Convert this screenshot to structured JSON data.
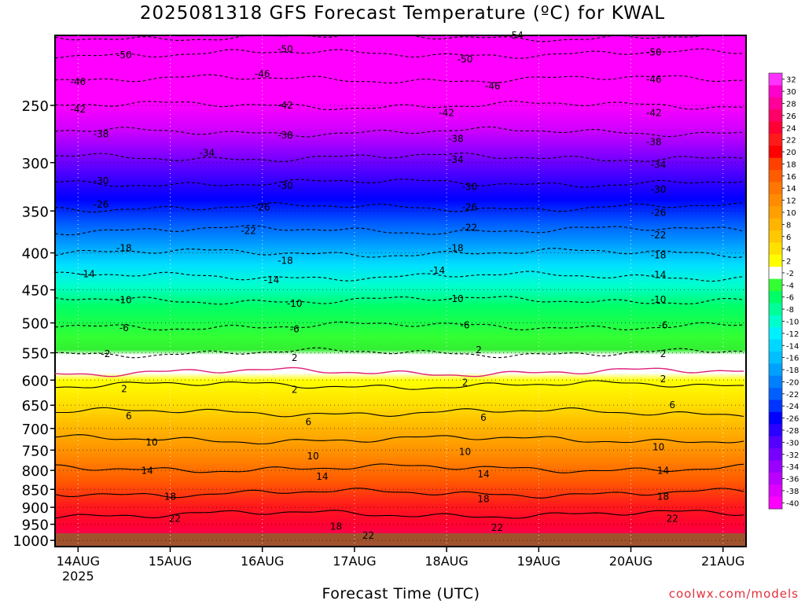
{
  "title": "2025081318 GFS Forecast Temperature (ºC) for KWAL",
  "credit": "coolwx.com/models",
  "chart_data": {
    "type": "heatmap",
    "title": "2025081318 GFS Forecast Temperature (ºC) for KWAL",
    "xlabel": "Forecast Time (UTC)",
    "ylabel": "",
    "x_ticks": [
      "14AUG",
      "15AUG",
      "16AUG",
      "17AUG",
      "18AUG",
      "19AUG",
      "20AUG",
      "21AUG"
    ],
    "x_tick_sublabel": "2025",
    "x_range_days": [
      -0.25,
      7.25
    ],
    "y_ticks": [
      250,
      300,
      350,
      400,
      450,
      500,
      550,
      600,
      650,
      700,
      750,
      800,
      850,
      900,
      950,
      1000
    ],
    "y_range_hpa": [
      200,
      1020
    ],
    "y_scale": "log",
    "grid": true,
    "colorbar_labels": [
      "32",
      "30",
      "28",
      "26",
      "24",
      "22",
      "20",
      "18",
      "16",
      "14",
      "12",
      "10",
      "8",
      "6",
      "4",
      "2",
      "-2",
      "-4",
      "-6",
      "-8",
      "-10",
      "-12",
      "-14",
      "-16",
      "-18",
      "-20",
      "-22",
      "-24",
      "-26",
      "-28",
      "-30",
      "-32",
      "-34",
      "-36",
      "-38",
      "-40"
    ],
    "colorbar_colors": [
      "#ff33ff",
      "#ff00cc",
      "#ff0099",
      "#ff0066",
      "#ff0033",
      "#ff1a1a",
      "#ff0000",
      "#ff4000",
      "#ff5c00",
      "#ff7700",
      "#ff8c00",
      "#ffa000",
      "#ffb400",
      "#ffc800",
      "#ffe100",
      "#ffff00",
      "#ffffff",
      "#33ff33",
      "#00ff66",
      "#00ff99",
      "#00ffcc",
      "#00f0ff",
      "#00d8ff",
      "#00bfff",
      "#00a0ff",
      "#0080ff",
      "#0060ff",
      "#0033ff",
      "#0000ff",
      "#2a00ff",
      "#5500ff",
      "#7700ff",
      "#9900ff",
      "#bb00ff",
      "#dd00ff",
      "#ff00ff"
    ],
    "isotherm_levels": [
      {
        "value": -54,
        "p": 201
      },
      {
        "value": -50,
        "p": 212
      },
      {
        "value": -46,
        "p": 230
      },
      {
        "value": -42,
        "p": 250
      },
      {
        "value": -38,
        "p": 272
      },
      {
        "value": -34,
        "p": 295
      },
      {
        "value": -30,
        "p": 320
      },
      {
        "value": -26,
        "p": 346
      },
      {
        "value": -22,
        "p": 372
      },
      {
        "value": -18,
        "p": 400
      },
      {
        "value": -14,
        "p": 431
      },
      {
        "value": -10,
        "p": 465
      },
      {
        "value": -6,
        "p": 505
      },
      {
        "value": -2,
        "p": 550
      },
      {
        "value": 0,
        "p": 585
      },
      {
        "value": 2,
        "p": 610
      },
      {
        "value": 6,
        "p": 665
      },
      {
        "value": 10,
        "p": 725
      },
      {
        "value": 14,
        "p": 795
      },
      {
        "value": 18,
        "p": 860
      },
      {
        "value": 22,
        "p": 920
      }
    ],
    "contour_labels": [
      {
        "text": "-54",
        "day": 4.75,
        "p": 200
      },
      {
        "text": "-50",
        "day": 0.5,
        "p": 213
      },
      {
        "text": "-50",
        "day": 2.25,
        "p": 209
      },
      {
        "text": "-50",
        "day": 4.2,
        "p": 216
      },
      {
        "text": "-50",
        "day": 6.25,
        "p": 211
      },
      {
        "text": "-46",
        "day": 0.0,
        "p": 232
      },
      {
        "text": "-46",
        "day": 2.0,
        "p": 226
      },
      {
        "text": "-46",
        "day": 4.5,
        "p": 235
      },
      {
        "text": "-46",
        "day": 6.25,
        "p": 230
      },
      {
        "text": "-42",
        "day": 0.0,
        "p": 253
      },
      {
        "text": "-42",
        "day": 2.25,
        "p": 250
      },
      {
        "text": "-42",
        "day": 4.0,
        "p": 256
      },
      {
        "text": "-42",
        "day": 6.25,
        "p": 256
      },
      {
        "text": "-38",
        "day": 0.25,
        "p": 274
      },
      {
        "text": "-38",
        "day": 2.25,
        "p": 275
      },
      {
        "text": "-38",
        "day": 4.1,
        "p": 278
      },
      {
        "text": "-38",
        "day": 6.25,
        "p": 281
      },
      {
        "text": "-34",
        "day": 1.4,
        "p": 291
      },
      {
        "text": "-34",
        "day": 4.1,
        "p": 297
      },
      {
        "text": "-34",
        "day": 6.3,
        "p": 302
      },
      {
        "text": "-30",
        "day": 0.25,
        "p": 318
      },
      {
        "text": "-30",
        "day": 2.25,
        "p": 323
      },
      {
        "text": "-30",
        "day": 4.25,
        "p": 324
      },
      {
        "text": "-30",
        "day": 6.3,
        "p": 327
      },
      {
        "text": "-26",
        "day": 0.25,
        "p": 343
      },
      {
        "text": "-26",
        "day": 2.0,
        "p": 346
      },
      {
        "text": "-26",
        "day": 4.25,
        "p": 346
      },
      {
        "text": "-26",
        "day": 6.3,
        "p": 352
      },
      {
        "text": "-22",
        "day": 1.85,
        "p": 373
      },
      {
        "text": "-22",
        "day": 4.25,
        "p": 369
      },
      {
        "text": "-22",
        "day": 6.3,
        "p": 378
      },
      {
        "text": "-18",
        "day": 0.5,
        "p": 394
      },
      {
        "text": "-18",
        "day": 2.25,
        "p": 410
      },
      {
        "text": "-18",
        "day": 4.1,
        "p": 394
      },
      {
        "text": "-18",
        "day": 6.3,
        "p": 403
      },
      {
        "text": "-14",
        "day": 0.1,
        "p": 428
      },
      {
        "text": "-14",
        "day": 2.1,
        "p": 436
      },
      {
        "text": "-14",
        "day": 3.9,
        "p": 423
      },
      {
        "text": "-14",
        "day": 6.3,
        "p": 429
      },
      {
        "text": "-10",
        "day": 0.5,
        "p": 465
      },
      {
        "text": "-10",
        "day": 2.35,
        "p": 470
      },
      {
        "text": "-10",
        "day": 4.1,
        "p": 463
      },
      {
        "text": "-10",
        "day": 6.3,
        "p": 464
      },
      {
        "text": "-6",
        "day": 0.5,
        "p": 508
      },
      {
        "text": "-6",
        "day": 2.35,
        "p": 510
      },
      {
        "text": "-6",
        "day": 4.2,
        "p": 504
      },
      {
        "text": "-6",
        "day": 6.35,
        "p": 504
      },
      {
        "text": "-2",
        "day": 0.3,
        "p": 552
      },
      {
        "text": "2",
        "day": 2.35,
        "p": 559
      },
      {
        "text": "2",
        "day": 4.35,
        "p": 545
      },
      {
        "text": "2",
        "day": 6.35,
        "p": 552
      },
      {
        "text": "2",
        "day": 0.5,
        "p": 617
      },
      {
        "text": "2",
        "day": 2.35,
        "p": 619
      },
      {
        "text": "2",
        "day": 4.2,
        "p": 605
      },
      {
        "text": "2",
        "day": 6.35,
        "p": 598
      },
      {
        "text": "6",
        "day": 0.55,
        "p": 673
      },
      {
        "text": "6",
        "day": 2.5,
        "p": 686
      },
      {
        "text": "6",
        "day": 4.4,
        "p": 676
      },
      {
        "text": "6",
        "day": 6.45,
        "p": 650
      },
      {
        "text": "10",
        "day": 0.8,
        "p": 732
      },
      {
        "text": "10",
        "day": 2.55,
        "p": 765
      },
      {
        "text": "10",
        "day": 4.2,
        "p": 754
      },
      {
        "text": "10",
        "day": 6.3,
        "p": 743
      },
      {
        "text": "14",
        "day": 0.75,
        "p": 801
      },
      {
        "text": "14",
        "day": 2.65,
        "p": 816
      },
      {
        "text": "14",
        "day": 4.4,
        "p": 810
      },
      {
        "text": "14",
        "day": 6.35,
        "p": 801
      },
      {
        "text": "18",
        "day": 1.0,
        "p": 870
      },
      {
        "text": "18",
        "day": 2.8,
        "p": 957
      },
      {
        "text": "18",
        "day": 4.4,
        "p": 876
      },
      {
        "text": "18",
        "day": 6.35,
        "p": 870
      },
      {
        "text": "22",
        "day": 1.05,
        "p": 933
      },
      {
        "text": "22",
        "day": 3.15,
        "p": 985
      },
      {
        "text": "22",
        "day": 4.55,
        "p": 960
      },
      {
        "text": "22",
        "day": 6.45,
        "p": 933
      }
    ]
  }
}
